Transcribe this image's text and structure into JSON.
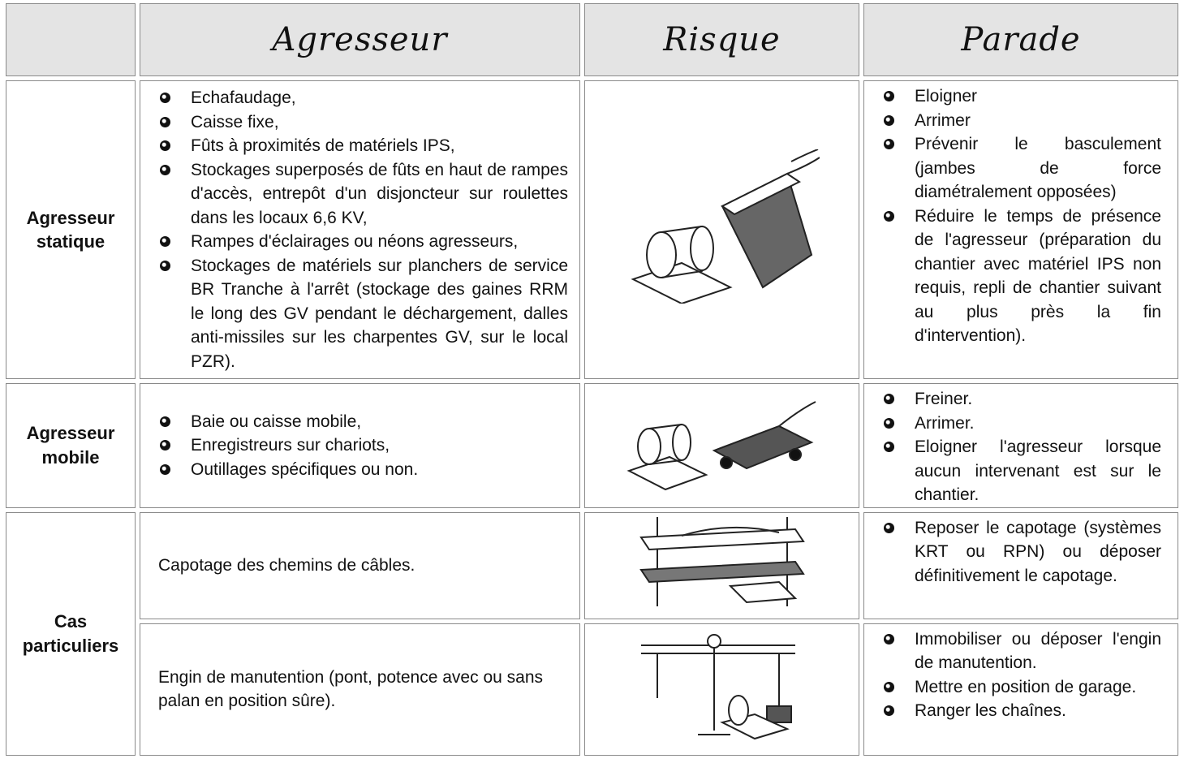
{
  "header": [
    "Agresseur",
    "Risque",
    "Parade"
  ],
  "rows": [
    {
      "label": "Agresseur statique",
      "agresseur": [
        "Echafaudage,",
        "Caisse fixe,",
        "Fûts à proximités de matériels IPS,",
        "Stockages superposés de fûts en haut de rampes d'accès, entrepôt d'un disjoncteur sur roulettes dans les locaux 6,6 KV,",
        "Rampes d'éclairages ou néons agresseurs,",
        "Stockages de matériels sur planchers de service BR Tranche à l'arrêt (stockage des gaines RRM le long des GV pendant le déchargement, dalles anti-missiles sur les charpentes GV, sur le local PZR)."
      ],
      "parade": [
        "Eloigner",
        "Arrimer",
        "Prévenir le basculement (jambes de force diamétralement opposées)",
        "Réduire le temps de présence de l'agresseur (préparation du chantier avec matériel IPS non requis, repli de chantier suivant au plus près la fin d'intervention)."
      ]
    },
    {
      "label": "Agresseur mobile",
      "agresseur": [
        "Baie ou caisse mobile,",
        "Enregistreurs sur chariots,",
        "Outillages spécifiques ou non."
      ],
      "parade": [
        "Freiner.",
        "Arrimer.",
        "Eloigner l'agresseur lorsque aucun intervenant est sur le chantier."
      ]
    },
    {
      "label": "Cas particuliers",
      "cases": [
        {
          "agresseur": "Capotage des chemins de câbles.",
          "parade": [
            "Reposer le capotage (systèmes KRT ou RPN) ou déposer définitivement le capotage."
          ]
        },
        {
          "agresseur": "Engin de manutention (pont, potence avec ou sans palan en position sûre).",
          "parade": [
            "Immobiliser ou déposer l'engin de manutention.",
            "Mettre en position de garage.",
            "Ranger les chaînes."
          ]
        }
      ]
    }
  ]
}
